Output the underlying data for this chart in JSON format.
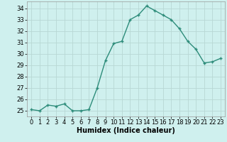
{
  "x": [
    0,
    1,
    2,
    3,
    4,
    5,
    6,
    7,
    8,
    9,
    10,
    11,
    12,
    13,
    14,
    15,
    16,
    17,
    18,
    19,
    20,
    21,
    22,
    23
  ],
  "y": [
    25.1,
    25.0,
    25.5,
    25.4,
    25.6,
    25.0,
    25.0,
    25.1,
    27.0,
    29.4,
    30.9,
    31.1,
    33.0,
    33.4,
    34.2,
    33.8,
    33.4,
    33.0,
    32.2,
    31.1,
    30.4,
    29.2,
    29.3,
    29.6
  ],
  "xlabel": "Humidex (Indice chaleur)",
  "ylim": [
    24.5,
    34.6
  ],
  "xlim": [
    -0.5,
    23.5
  ],
  "yticks": [
    25,
    26,
    27,
    28,
    29,
    30,
    31,
    32,
    33,
    34
  ],
  "xticks": [
    0,
    1,
    2,
    3,
    4,
    5,
    6,
    7,
    8,
    9,
    10,
    11,
    12,
    13,
    14,
    15,
    16,
    17,
    18,
    19,
    20,
    21,
    22,
    23
  ],
  "line_color": "#2d8c7a",
  "marker_color": "#2d8c7a",
  "bg_color": "#cff0ee",
  "grid_color": "#b8d8d4",
  "xlabel_fontsize": 7,
  "tick_fontsize": 6,
  "line_width": 1.0,
  "marker_size": 2.5
}
